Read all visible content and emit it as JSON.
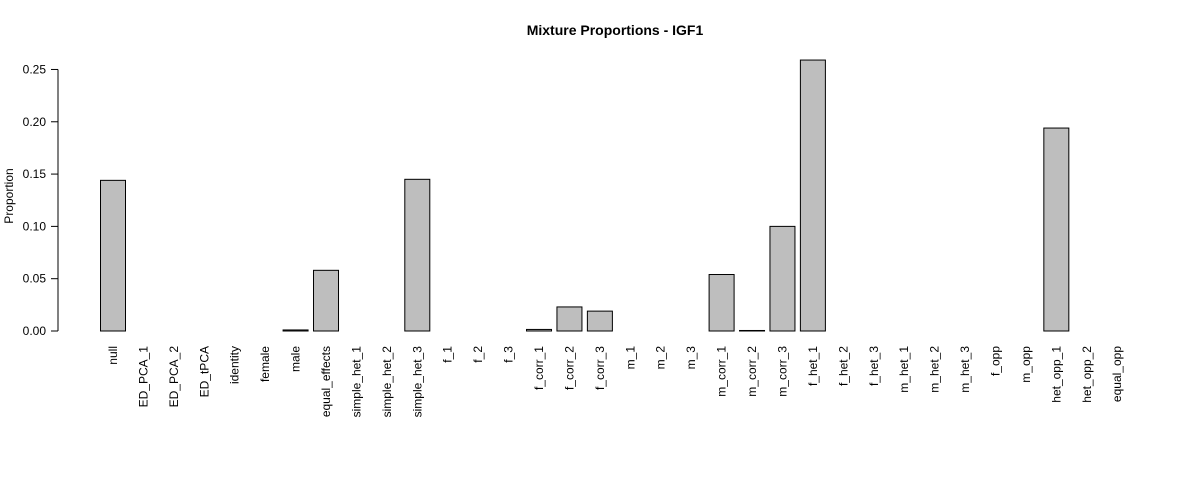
{
  "chart_data": {
    "type": "bar",
    "title": "Mixture Proportions - IGF1",
    "xlabel": "",
    "ylabel": "Proportion",
    "ylim": [
      0,
      0.26
    ],
    "yticks": [
      "0.00",
      "0.05",
      "0.10",
      "0.15",
      "0.20",
      "0.25"
    ],
    "categories": [
      "null",
      "ED_PCA_1",
      "ED_PCA_2",
      "ED_tPCA",
      "identity",
      "female",
      "male",
      "equal_effects",
      "simple_het_1",
      "simple_het_2",
      "simple_het_3",
      "f_1",
      "f_2",
      "f_3",
      "f_corr_1",
      "f_corr_2",
      "f_corr_3",
      "m_1",
      "m_2",
      "m_3",
      "m_corr_1",
      "m_corr_2",
      "m_corr_3",
      "f_het_1",
      "f_het_2",
      "f_het_3",
      "m_het_1",
      "m_het_2",
      "m_het_3",
      "f_opp",
      "m_opp",
      "het_opp_1",
      "het_opp_2",
      "equal_opp"
    ],
    "values": [
      0.144,
      0.0,
      0.0,
      0.0,
      0.0,
      0.0,
      0.001,
      0.058,
      0.0,
      0.0,
      0.145,
      0.0,
      0.0,
      0.0,
      0.0015,
      0.023,
      0.019,
      0.0,
      0.0,
      0.0,
      0.054,
      0.0005,
      0.1,
      0.259,
      0.0,
      0.0,
      0.0,
      0.0,
      0.0,
      0.0,
      0.0,
      0.194,
      0.0,
      0.0
    ],
    "grid": false,
    "bar_color": "#bebebe",
    "legend": "none"
  }
}
